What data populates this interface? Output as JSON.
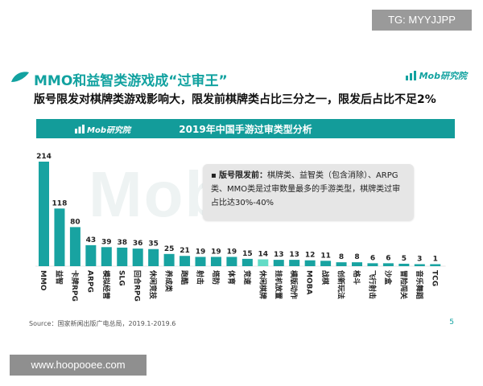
{
  "watermarks": {
    "top": "TG: MYYJJPP",
    "bottom": "www.hoopooee.com"
  },
  "header": {
    "title": "MMO和益智类游戏成“过审王”",
    "subtitle": "版号限发对棋牌类游戏影响大，限发前棋牌类占比三分之一，限发后占比不足2%",
    "logo_text": "Mob研究院"
  },
  "panel": {
    "logo_text": "Mob研究院",
    "background_watermark": "Mobtech"
  },
  "note": {
    "bullet": "▪",
    "label": "版号限发前：",
    "text": "棋牌类、益智类（包含消除）、ARPG类、MMO类是过审数量最多的手游类型，棋牌类过审占比达30%-40%"
  },
  "chart_data": {
    "type": "bar",
    "title": "2019年中国手游过审类型分析",
    "categories": [
      "MMO",
      "益智",
      "卡牌RPG",
      "ARPG",
      "模拟经营",
      "SLG",
      "回合RPG",
      "休闲竞技",
      "养成类",
      "跑酷",
      "射击",
      "塔防",
      "体育",
      "竞速",
      "休闲棋牌",
      "挂机放置",
      "横版动作",
      "MOBA",
      "战棋",
      "创新玩法",
      "格斗",
      "飞行射击",
      "沙盒",
      "冒险闯关",
      "音乐舞蹈",
      "TCG"
    ],
    "values": [
      214,
      118,
      80,
      43,
      39,
      38,
      36,
      35,
      25,
      21,
      19,
      19,
      19,
      15,
      14,
      13,
      13,
      12,
      11,
      8,
      8,
      6,
      6,
      5,
      3,
      1
    ],
    "highlight_index": 14,
    "colors": {
      "bar": "#18a3a1",
      "highlight": "#62dcc6"
    },
    "grid": false,
    "legend": "none"
  },
  "footer": {
    "source": "Source：国家新闻出版广电总局，2019.1-2019.6",
    "page": "5"
  }
}
